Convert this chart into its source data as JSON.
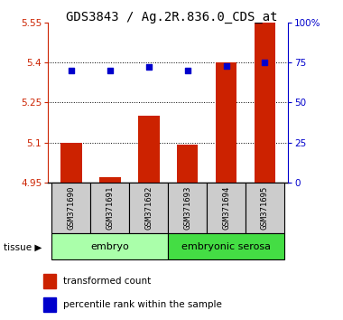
{
  "title": "GDS3843 / Ag.2R.836.0_CDS_at",
  "samples": [
    "GSM371690",
    "GSM371691",
    "GSM371692",
    "GSM371693",
    "GSM371694",
    "GSM371695"
  ],
  "bar_values": [
    5.1,
    4.97,
    5.2,
    5.09,
    5.4,
    5.55
  ],
  "bar_baseline": 4.95,
  "percentile_values": [
    70,
    70,
    72,
    70,
    73,
    75
  ],
  "ylim_left": [
    4.95,
    5.55
  ],
  "ylim_right": [
    0,
    100
  ],
  "yticks_left": [
    4.95,
    5.1,
    5.25,
    5.4,
    5.55
  ],
  "ytick_labels_left": [
    "4.95",
    "5.1",
    "5.25",
    "5.4",
    "5.55"
  ],
  "yticks_right": [
    0,
    25,
    50,
    75,
    100
  ],
  "ytick_labels_right": [
    "0",
    "25",
    "50",
    "75",
    "100%"
  ],
  "bar_color": "#cc2200",
  "dot_color": "#0000cc",
  "grid_color": "#000000",
  "tissue_groups": [
    {
      "label": "embryo",
      "indices": [
        0,
        1,
        2
      ],
      "color": "#aaffaa"
    },
    {
      "label": "embryonic serosa",
      "indices": [
        3,
        4,
        5
      ],
      "color": "#44dd44"
    }
  ],
  "tissue_label": "tissue",
  "legend_bar_label": "transformed count",
  "legend_dot_label": "percentile rank within the sample",
  "left_axis_color": "#cc2200",
  "right_axis_color": "#0000cc",
  "title_fontsize": 10,
  "tick_fontsize": 7.5,
  "sample_fontsize": 6.5,
  "bar_width": 0.55
}
